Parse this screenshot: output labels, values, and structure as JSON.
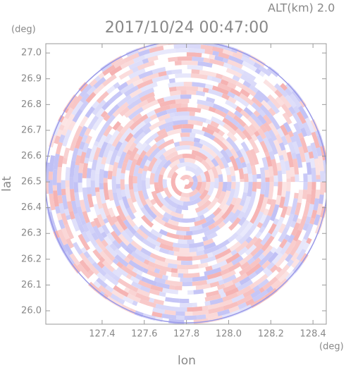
{
  "chart_data": {
    "type": "radar-ppi",
    "title": "2017/10/24 00:47:00",
    "subtitle": "ALT(km) 2.0",
    "x_label": "lon",
    "y_label": "lat",
    "x_unit": "(deg)",
    "y_unit": "(deg)",
    "xlim": [
      127.133,
      128.463
    ],
    "ylim": [
      25.948,
      27.036
    ],
    "xticks": [
      127.4,
      127.6,
      127.8,
      {
        "value": 128.0,
        "label": "128.0"
      },
      128.2,
      128.4
    ],
    "yticks": [
      {
        "value": 26.0,
        "label": "26.0"
      },
      26.1,
      26.2,
      26.3,
      26.4,
      26.5,
      26.6,
      26.7,
      26.8,
      26.9,
      {
        "value": 27.0,
        "label": "27.0"
      }
    ],
    "center": [
      127.8,
      26.5
    ]
  }
}
